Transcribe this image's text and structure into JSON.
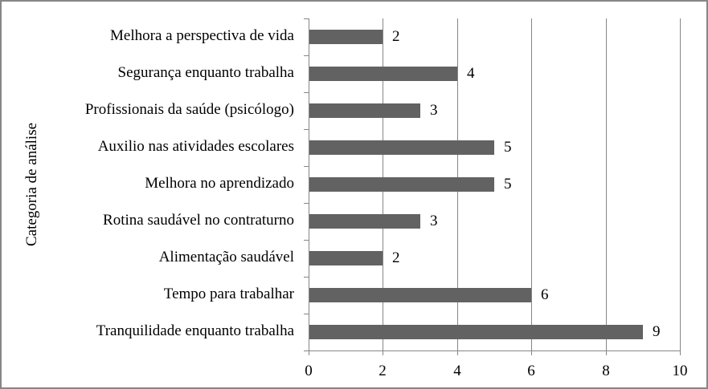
{
  "chart_data": {
    "type": "bar",
    "orientation": "horizontal",
    "title": "",
    "xlabel": "",
    "ylabel": "Categoria de análise",
    "xlim": [
      0,
      10
    ],
    "xticks": [
      "0",
      "2",
      "4",
      "6",
      "8",
      "10"
    ],
    "grid": true,
    "legend": null,
    "bar_color": "#626262",
    "categories": [
      "Melhora a perspectiva de vida",
      "Segurança enquanto trabalha",
      "Profissionais da saúde (psicólogo)",
      "Auxilio nas atividades escolares",
      "Melhora no aprendizado",
      "Rotina saudável no contraturno",
      "Alimentação saudável",
      "Tempo para trabalhar",
      "Tranquilidade enquanto trabalha"
    ],
    "values": [
      2,
      4,
      3,
      5,
      5,
      3,
      2,
      6,
      9
    ],
    "value_labels": [
      "2",
      "4",
      "3",
      "5",
      "5",
      "3",
      "2",
      "6",
      "9"
    ]
  }
}
